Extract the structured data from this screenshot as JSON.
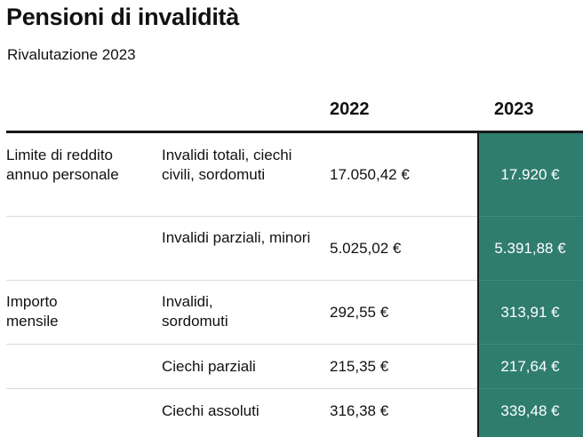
{
  "title": "Pensioni di invalidità",
  "subtitle": "Rivalutazione 2023",
  "colors": {
    "highlight_column": "#2f7d6f",
    "text": "#111111",
    "rule": "#1a1a1a"
  },
  "table": {
    "headers": {
      "col_category": "",
      "col_subcategory": "",
      "col_2022": "2022",
      "col_2023": "2023"
    },
    "rows": [
      {
        "category": "Limite di reddito annuo personale",
        "subcategory": "Invalidi totali, ciechi civili, sordomuti",
        "value_2022": "17.050,42 €",
        "value_2023": "17.920 €"
      },
      {
        "category": "",
        "subcategory": "Invalidi parziali, minori",
        "value_2022": "5.025,02 €",
        "value_2023": "5.391,88 €"
      },
      {
        "category": "Importo mensile",
        "subcategory": "Invalidi, sordomuti",
        "value_2022": "292,55 €",
        "value_2023": "313,91 €"
      },
      {
        "category": "",
        "subcategory": "Ciechi parziali",
        "value_2022": "215,35 €",
        "value_2023": "217,64 €"
      },
      {
        "category": "",
        "subcategory": "Ciechi assoluti",
        "value_2022": "316,38 €",
        "value_2023": "339,48 €"
      }
    ]
  }
}
